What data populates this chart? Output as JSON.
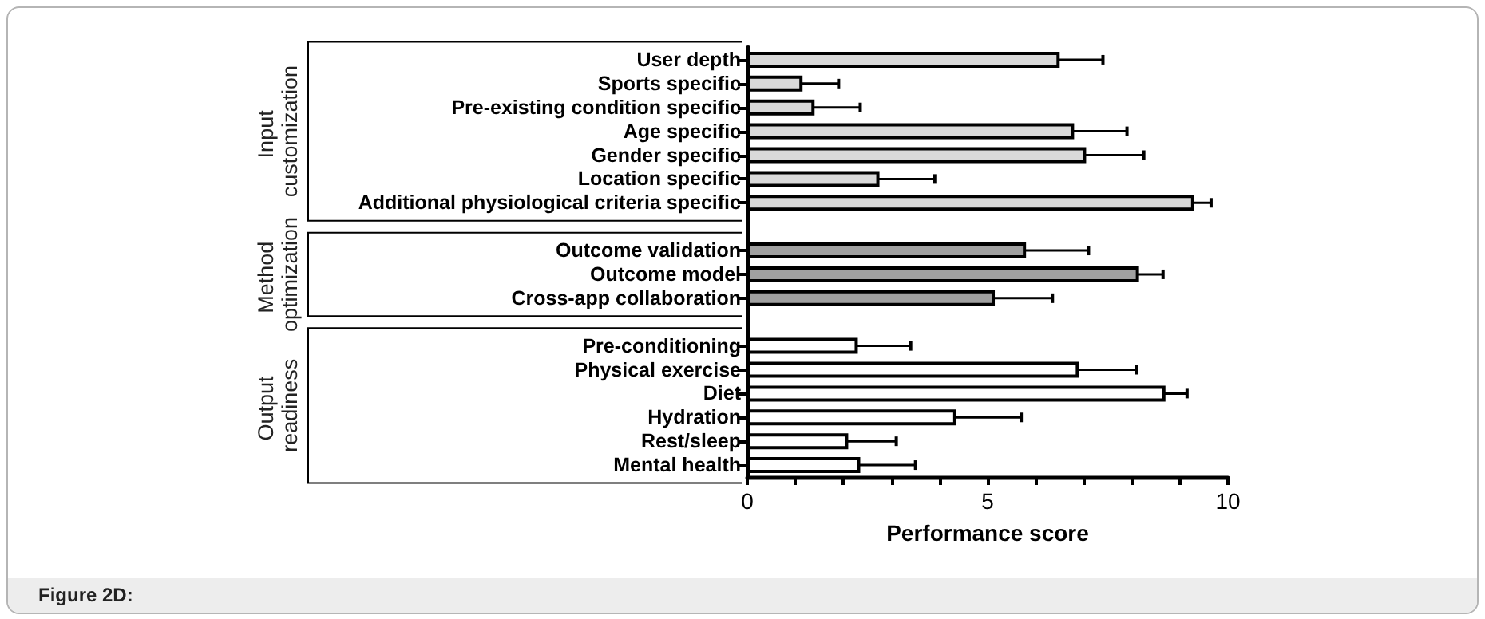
{
  "chart_data": {
    "type": "bar",
    "orientation": "horizontal",
    "xlabel": "Performance score",
    "categories": [
      "User depth",
      "Sports specific",
      "Pre-existing condition specific",
      "Age specific",
      "Gender specific",
      "Location specific",
      "Additional physiological criteria specific",
      null,
      "Outcome validation",
      "Outcome model",
      "Cross-app collaboration",
      null,
      "Pre-conditioning",
      "Physical exercise",
      "Diet",
      "Hydration",
      "Rest/sleep",
      "Mental health"
    ],
    "values": [
      6.5,
      1.15,
      1.4,
      6.8,
      7.05,
      2.75,
      9.3,
      null,
      5.8,
      8.15,
      5.15,
      null,
      2.3,
      6.9,
      8.7,
      4.35,
      2.1,
      2.35
    ],
    "errors": [
      0.9,
      0.75,
      0.95,
      1.1,
      1.2,
      1.15,
      0.35,
      null,
      1.3,
      0.5,
      1.2,
      null,
      1.1,
      1.2,
      0.45,
      1.35,
      1.0,
      1.15
    ],
    "colors": [
      "#d9d9d9",
      "#d9d9d9",
      "#d9d9d9",
      "#d9d9d9",
      "#d9d9d9",
      "#d9d9d9",
      "#d9d9d9",
      null,
      "#a0a0a0",
      "#a0a0a0",
      "#a0a0a0",
      null,
      "#ffffff",
      "#ffffff",
      "#ffffff",
      "#ffffff",
      "#ffffff",
      "#ffffff"
    ],
    "xlim": [
      0,
      10
    ],
    "xticks": [
      0,
      {
        "value": 1,
        "label": null
      },
      {
        "value": 2,
        "label": null
      },
      {
        "value": 3,
        "label": null
      },
      {
        "value": 4,
        "label": null
      },
      5,
      {
        "value": 6,
        "label": null
      },
      {
        "value": 7,
        "label": null
      },
      {
        "value": 8,
        "label": null
      },
      {
        "value": 9,
        "label": null
      },
      10
    ],
    "annotations": [
      "Input customization",
      "Method optimization",
      "Output readiness",
      "Figure 2D:"
    ]
  }
}
